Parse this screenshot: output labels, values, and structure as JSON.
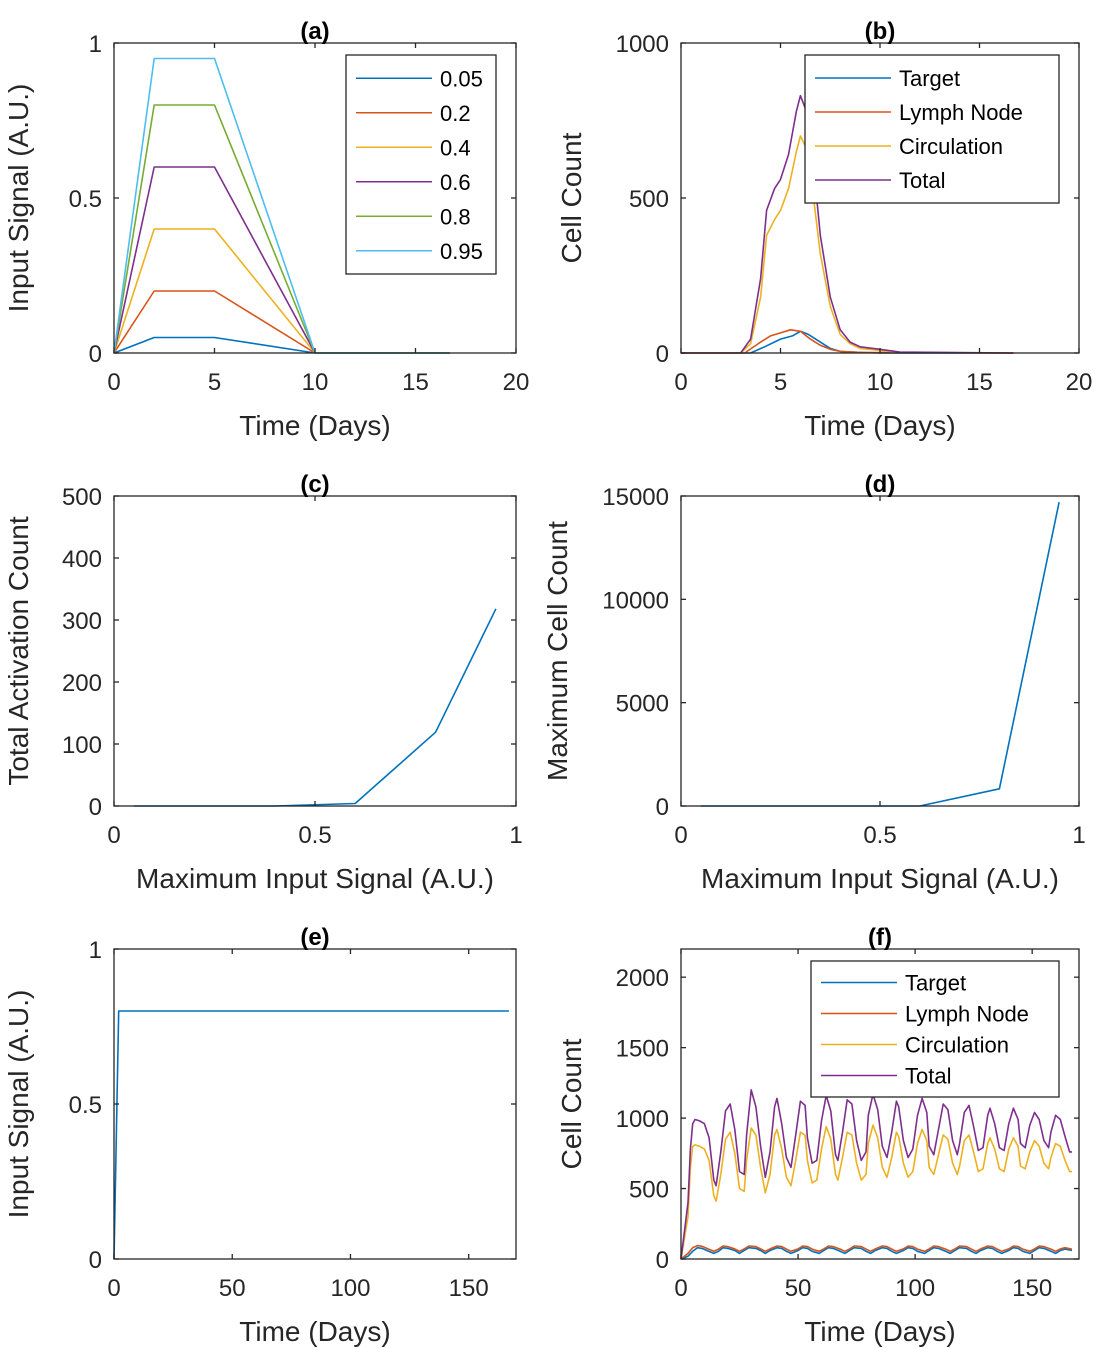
{
  "colors": {
    "blue": "#0072BD",
    "orange": "#D95319",
    "yellow": "#EDB120",
    "purple": "#7E2F8E",
    "green": "#77AC30",
    "cyan": "#4DBEEE",
    "axis": "#262626"
  },
  "chart_data": [
    {
      "panel": "a",
      "type": "line",
      "title": "(a)",
      "xlabel": "Time (Days)",
      "ylabel": "Input Signal (A.U.)",
      "xlim": [
        0,
        20
      ],
      "ylim": [
        0,
        1
      ],
      "xticks": [
        0,
        5,
        10,
        15,
        20
      ],
      "yticks": [
        0,
        0.5,
        1
      ],
      "legend_position": "top-right",
      "series": [
        {
          "name": "0.05",
          "color": "blue",
          "x": [
            0,
            2,
            5,
            10,
            16.7
          ],
          "y": [
            0,
            0.05,
            0.05,
            0,
            0
          ]
        },
        {
          "name": "0.2",
          "color": "orange",
          "x": [
            0,
            2,
            5,
            10,
            16.7
          ],
          "y": [
            0,
            0.2,
            0.2,
            0,
            0
          ]
        },
        {
          "name": "0.4",
          "color": "yellow",
          "x": [
            0,
            2,
            5,
            10,
            16.7
          ],
          "y": [
            0,
            0.4,
            0.4,
            0,
            0
          ]
        },
        {
          "name": "0.6",
          "color": "purple",
          "x": [
            0,
            2,
            5,
            10,
            16.7
          ],
          "y": [
            0,
            0.6,
            0.6,
            0,
            0
          ]
        },
        {
          "name": "0.8",
          "color": "green",
          "x": [
            0,
            2,
            5,
            10,
            16.7
          ],
          "y": [
            0,
            0.8,
            0.8,
            0,
            0
          ]
        },
        {
          "name": "0.95",
          "color": "cyan",
          "x": [
            0,
            2,
            5,
            10,
            16.7
          ],
          "y": [
            0,
            0.95,
            0.95,
            0,
            0
          ]
        }
      ]
    },
    {
      "panel": "b",
      "type": "line",
      "title": "(b)",
      "xlabel": "Time (Days)",
      "ylabel": "Cell Count",
      "xlim": [
        0,
        20
      ],
      "ylim": [
        0,
        1000
      ],
      "xticks": [
        0,
        5,
        10,
        15,
        20
      ],
      "yticks": [
        0,
        500,
        1000
      ],
      "legend_position": "top-right",
      "series": [
        {
          "name": "Target",
          "color": "blue",
          "x": [
            0,
            3.5,
            4.2,
            5.0,
            5.6,
            6.0,
            6.4,
            7.0,
            7.5,
            8.0,
            9.0,
            10.0,
            16.7
          ],
          "y": [
            0,
            0,
            20,
            45,
            55,
            70,
            60,
            35,
            15,
            5,
            2,
            0,
            0
          ]
        },
        {
          "name": "Lymph Node",
          "color": "orange",
          "x": [
            0,
            3.2,
            4.0,
            4.5,
            5.0,
            5.5,
            6.0,
            6.5,
            7.0,
            7.5,
            8.0,
            9.0,
            16.7
          ],
          "y": [
            0,
            0,
            35,
            55,
            65,
            75,
            70,
            45,
            25,
            12,
            5,
            2,
            0
          ]
        },
        {
          "name": "Circulation",
          "color": "yellow",
          "x": [
            0,
            3.0,
            3.5,
            4.0,
            4.3,
            4.7,
            5.0,
            5.4,
            5.8,
            6.0,
            6.3,
            6.7,
            7.0,
            7.5,
            8.0,
            8.5,
            9.0,
            10.0,
            11.0,
            16.7
          ],
          "y": [
            0,
            0,
            30,
            180,
            380,
            430,
            460,
            530,
            650,
            700,
            660,
            480,
            320,
            150,
            60,
            30,
            15,
            8,
            2,
            0
          ]
        },
        {
          "name": "Total",
          "color": "purple",
          "x": [
            0,
            3.0,
            3.5,
            4.0,
            4.3,
            4.7,
            5.0,
            5.4,
            5.8,
            6.0,
            6.3,
            6.7,
            7.0,
            7.5,
            8.0,
            8.5,
            9.0,
            10.0,
            11.0,
            16.7
          ],
          "y": [
            0,
            0,
            45,
            240,
            460,
            530,
            560,
            640,
            780,
            830,
            780,
            580,
            380,
            180,
            75,
            35,
            20,
            12,
            3,
            0
          ]
        }
      ]
    },
    {
      "panel": "c",
      "type": "line",
      "title": "(c)",
      "xlabel": "Maximum Input Signal (A.U.)",
      "ylabel": "Total Activation Count",
      "xlim": [
        0,
        1
      ],
      "ylim": [
        0,
        500
      ],
      "xticks": [
        0,
        0.5,
        1
      ],
      "yticks": [
        0,
        100,
        200,
        300,
        400,
        500
      ],
      "series": [
        {
          "name": "",
          "color": "blue",
          "x": [
            0.05,
            0.2,
            0.4,
            0.6,
            0.8,
            0.95
          ],
          "y": [
            0,
            0,
            0,
            4,
            119,
            318
          ]
        }
      ]
    },
    {
      "panel": "d",
      "type": "line",
      "title": "(d)",
      "xlabel": "Maximum Input Signal (A.U.)",
      "ylabel": "Maximum Cell Count",
      "xlim": [
        0,
        1
      ],
      "ylim": [
        0,
        15000
      ],
      "xticks": [
        0,
        0.5,
        1
      ],
      "yticks": [
        0,
        5000,
        10000,
        15000
      ],
      "series": [
        {
          "name": "",
          "color": "blue",
          "x": [
            0.05,
            0.2,
            0.4,
            0.6,
            0.8,
            0.95
          ],
          "y": [
            0,
            0,
            0,
            0,
            830,
            14700
          ]
        }
      ]
    },
    {
      "panel": "e",
      "type": "line",
      "title": "(e)",
      "xlabel": "Time (Days)",
      "ylabel": "Input Signal (A.U.)",
      "xlim": [
        0,
        170
      ],
      "ylim": [
        0,
        1
      ],
      "xticks": [
        0,
        50,
        100,
        150
      ],
      "yticks": [
        0,
        0.5,
        1
      ],
      "series": [
        {
          "name": "",
          "color": "blue",
          "x": [
            0,
            2,
            167
          ],
          "y": [
            0,
            0.8,
            0.8
          ]
        }
      ]
    },
    {
      "panel": "f",
      "type": "line",
      "title": "(f)",
      "xlabel": "Time (Days)",
      "ylabel": "Cell Count",
      "xlim": [
        0,
        170
      ],
      "ylim": [
        0,
        2200
      ],
      "xticks": [
        0,
        50,
        100,
        150
      ],
      "yticks": [
        0,
        500,
        1000,
        1500,
        2000
      ],
      "legend_position": "top-right",
      "series": [
        {
          "name": "Target",
          "color": "blue",
          "x": [
            0,
            3,
            5,
            7,
            9,
            11,
            14,
            16,
            18,
            20,
            23,
            25,
            27,
            29,
            32,
            34,
            36,
            38,
            41,
            43,
            45,
            47,
            50,
            52,
            54,
            56,
            59,
            61,
            63,
            65,
            68,
            70,
            72,
            74,
            77,
            79,
            81,
            83,
            86,
            88,
            90,
            92,
            95,
            97,
            99,
            101,
            104,
            106,
            108,
            110,
            113,
            115,
            117,
            119,
            122,
            124,
            126,
            128,
            131,
            133,
            135,
            137,
            140,
            142,
            144,
            146,
            149,
            151,
            153,
            155,
            158,
            160,
            162,
            164,
            167
          ],
          "y": [
            0,
            20,
            55,
            80,
            75,
            60,
            40,
            55,
            80,
            75,
            60,
            40,
            60,
            80,
            75,
            60,
            40,
            60,
            80,
            75,
            55,
            40,
            60,
            80,
            75,
            55,
            40,
            60,
            80,
            75,
            55,
            40,
            60,
            80,
            75,
            55,
            40,
            60,
            80,
            75,
            55,
            40,
            60,
            80,
            75,
            55,
            40,
            60,
            80,
            75,
            55,
            40,
            60,
            80,
            75,
            55,
            40,
            60,
            80,
            75,
            55,
            40,
            60,
            80,
            75,
            55,
            40,
            60,
            80,
            75,
            55,
            40,
            60,
            70,
            60
          ]
        },
        {
          "name": "Lymph Node",
          "color": "orange",
          "x": [
            0,
            3,
            5,
            7,
            9,
            11,
            14,
            16,
            18,
            20,
            23,
            25,
            27,
            29,
            32,
            34,
            36,
            38,
            41,
            43,
            45,
            47,
            50,
            52,
            54,
            56,
            59,
            61,
            63,
            65,
            68,
            70,
            72,
            74,
            77,
            79,
            81,
            83,
            86,
            88,
            90,
            92,
            95,
            97,
            99,
            101,
            104,
            106,
            108,
            110,
            113,
            115,
            117,
            119,
            122,
            124,
            126,
            128,
            131,
            133,
            135,
            137,
            140,
            142,
            144,
            146,
            149,
            151,
            153,
            155,
            158,
            160,
            162,
            164,
            167
          ],
          "y": [
            0,
            40,
            80,
            95,
            90,
            75,
            55,
            70,
            92,
            88,
            72,
            55,
            72,
            92,
            88,
            72,
            55,
            72,
            92,
            88,
            70,
            55,
            72,
            92,
            88,
            70,
            55,
            72,
            92,
            88,
            70,
            55,
            72,
            92,
            88,
            70,
            55,
            72,
            92,
            88,
            70,
            55,
            72,
            92,
            88,
            70,
            55,
            72,
            92,
            88,
            70,
            55,
            72,
            92,
            88,
            70,
            55,
            72,
            92,
            88,
            70,
            55,
            72,
            92,
            88,
            70,
            55,
            72,
            92,
            88,
            70,
            55,
            72,
            80,
            70
          ]
        },
        {
          "name": "Circulation",
          "color": "yellow",
          "x": [
            0,
            3,
            4,
            5,
            6,
            8,
            10,
            12,
            14,
            15,
            17,
            19,
            21,
            23,
            25,
            27,
            28,
            30,
            32,
            34,
            36,
            38,
            40,
            41,
            43,
            45,
            47,
            49,
            51,
            53,
            54,
            56,
            58,
            60,
            62,
            64,
            66,
            67,
            69,
            71,
            73,
            75,
            77,
            79,
            80,
            82,
            84,
            86,
            88,
            90,
            92,
            93,
            95,
            97,
            99,
            101,
            103,
            105,
            106,
            108,
            110,
            112,
            114,
            116,
            118,
            119,
            121,
            123,
            125,
            127,
            129,
            131,
            132,
            134,
            136,
            138,
            140,
            142,
            144,
            145,
            147,
            149,
            151,
            153,
            155,
            157,
            158,
            160,
            162,
            164,
            166,
            167
          ],
          "y": [
            0,
            300,
            650,
            800,
            810,
            800,
            780,
            700,
            450,
            410,
            600,
            850,
            900,
            750,
            500,
            480,
            700,
            930,
            880,
            650,
            470,
            600,
            880,
            920,
            780,
            580,
            520,
            700,
            900,
            880,
            700,
            540,
            560,
            780,
            940,
            850,
            600,
            560,
            720,
            900,
            880,
            680,
            560,
            600,
            820,
            950,
            860,
            650,
            580,
            720,
            900,
            870,
            680,
            580,
            620,
            820,
            920,
            840,
            650,
            600,
            740,
            880,
            850,
            680,
            600,
            660,
            840,
            880,
            760,
            620,
            640,
            820,
            860,
            780,
            640,
            620,
            780,
            860,
            800,
            660,
            640,
            760,
            840,
            800,
            680,
            640,
            720,
            820,
            800,
            700,
            620,
            620
          ]
        },
        {
          "name": "Total",
          "color": "purple",
          "x": [
            0,
            3,
            4,
            5,
            6,
            8,
            10,
            12,
            14,
            15,
            17,
            19,
            21,
            23,
            25,
            27,
            28,
            30,
            32,
            34,
            36,
            38,
            40,
            41,
            43,
            45,
            47,
            49,
            51,
            53,
            54,
            56,
            58,
            60,
            62,
            64,
            66,
            67,
            69,
            71,
            73,
            75,
            77,
            79,
            80,
            82,
            84,
            86,
            88,
            90,
            92,
            93,
            95,
            97,
            99,
            101,
            103,
            105,
            106,
            108,
            110,
            112,
            114,
            116,
            118,
            119,
            121,
            123,
            125,
            127,
            129,
            131,
            132,
            134,
            136,
            138,
            140,
            142,
            144,
            145,
            147,
            149,
            151,
            153,
            155,
            157,
            158,
            160,
            162,
            164,
            166,
            167
          ],
          "y": [
            0,
            400,
            780,
            960,
            990,
            980,
            960,
            860,
            560,
            520,
            760,
            1050,
            1100,
            920,
            620,
            600,
            880,
            1200,
            1080,
            800,
            580,
            760,
            1080,
            1140,
            960,
            720,
            650,
            880,
            1120,
            1090,
            860,
            680,
            700,
            980,
            1160,
            1050,
            740,
            700,
            900,
            1130,
            1100,
            840,
            700,
            760,
            1020,
            1170,
            1060,
            800,
            720,
            900,
            1120,
            1080,
            840,
            720,
            780,
            1020,
            1140,
            1040,
            800,
            740,
            920,
            1100,
            1060,
            840,
            740,
            820,
            1040,
            1090,
            940,
            770,
            790,
            1020,
            1070,
            960,
            790,
            770,
            960,
            1070,
            990,
            820,
            790,
            950,
            1040,
            990,
            840,
            790,
            900,
            1020,
            990,
            870,
            760,
            760
          ]
        }
      ]
    }
  ]
}
